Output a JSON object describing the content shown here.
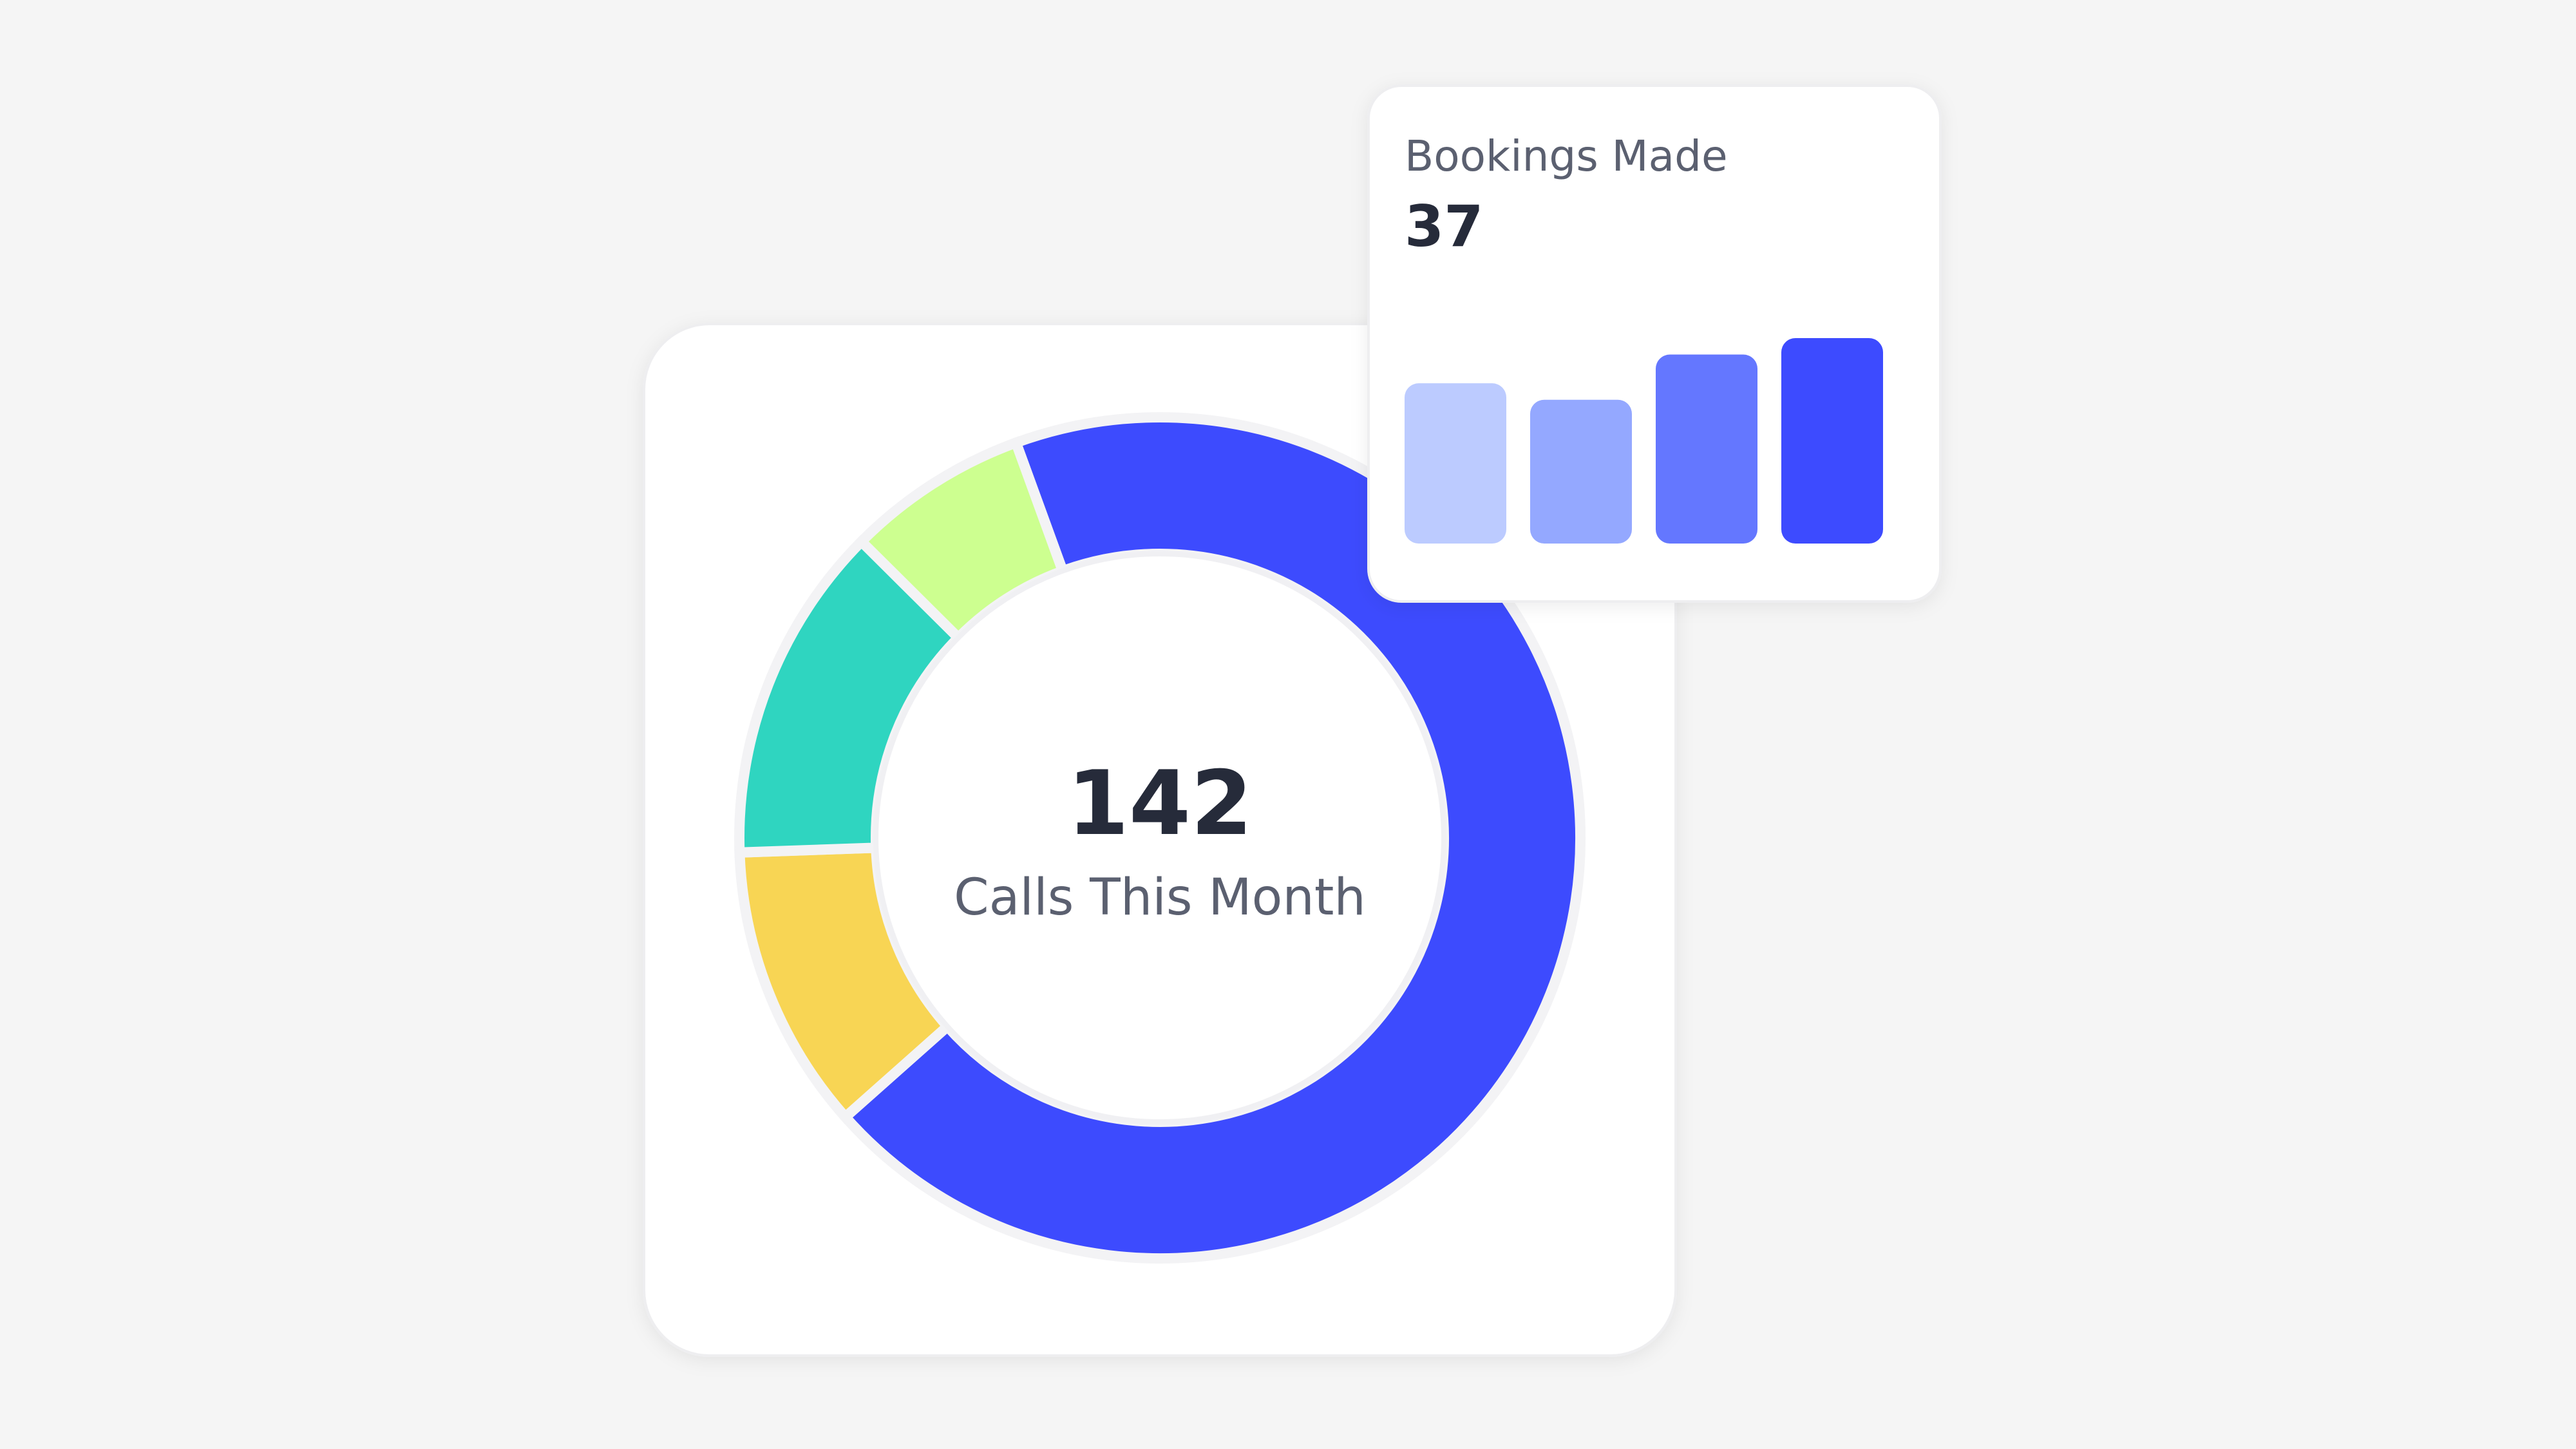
{
  "chart_data": [
    {
      "type": "donut",
      "center_value": 142,
      "center_label": "Calls This Month",
      "values": [
        69,
        11,
        13,
        7
      ],
      "colors": [
        "#3d4bfe",
        "#f8d554",
        "#2fd5c0",
        "#cdff90"
      ]
    },
    {
      "type": "bar",
      "title": "Bookings Made",
      "headline_value": 37,
      "values": [
        78,
        70,
        92,
        100
      ],
      "colors": [
        "#bccbff",
        "#94a8ff",
        "#6477ff",
        "#3d4bff"
      ]
    }
  ]
}
